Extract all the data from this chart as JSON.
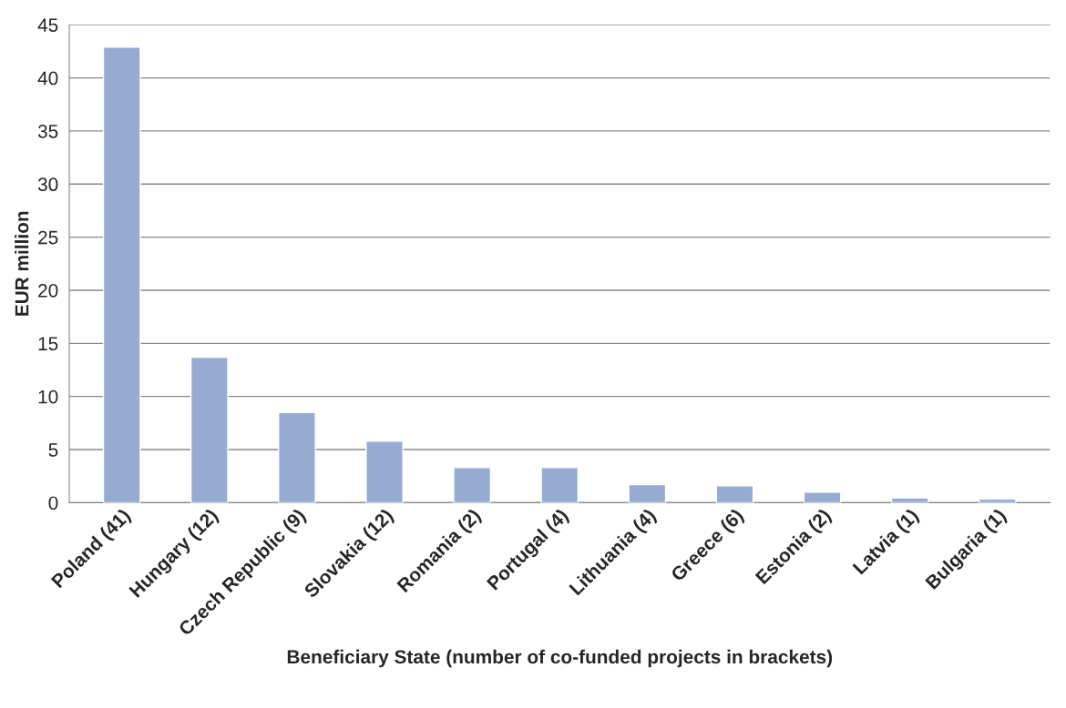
{
  "chart_data": {
    "type": "bar",
    "xlabel": "Beneficiary State (number of co-funded projects in brackets)",
    "ylabel": "EUR million",
    "categories": [
      "Poland (41)",
      "Hungary (12)",
      "Czech Republic (9)",
      "Slovakia (12)",
      "Romania (2)",
      "Portugal (4)",
      "Lithuania (4)",
      "Greece (6)",
      "Estonia (2)",
      "Latvia (1)",
      "Bulgaria (1)"
    ],
    "values": [
      42.9,
      13.7,
      8.5,
      5.8,
      3.3,
      3.3,
      1.7,
      1.6,
      1.0,
      0.45,
      0.35
    ],
    "color": "#95abd2",
    "ylim": [
      0,
      45
    ],
    "yticks": [
      0,
      5,
      10,
      15,
      20,
      25,
      30,
      35,
      40,
      45
    ],
    "grid": "y",
    "legend": false
  }
}
